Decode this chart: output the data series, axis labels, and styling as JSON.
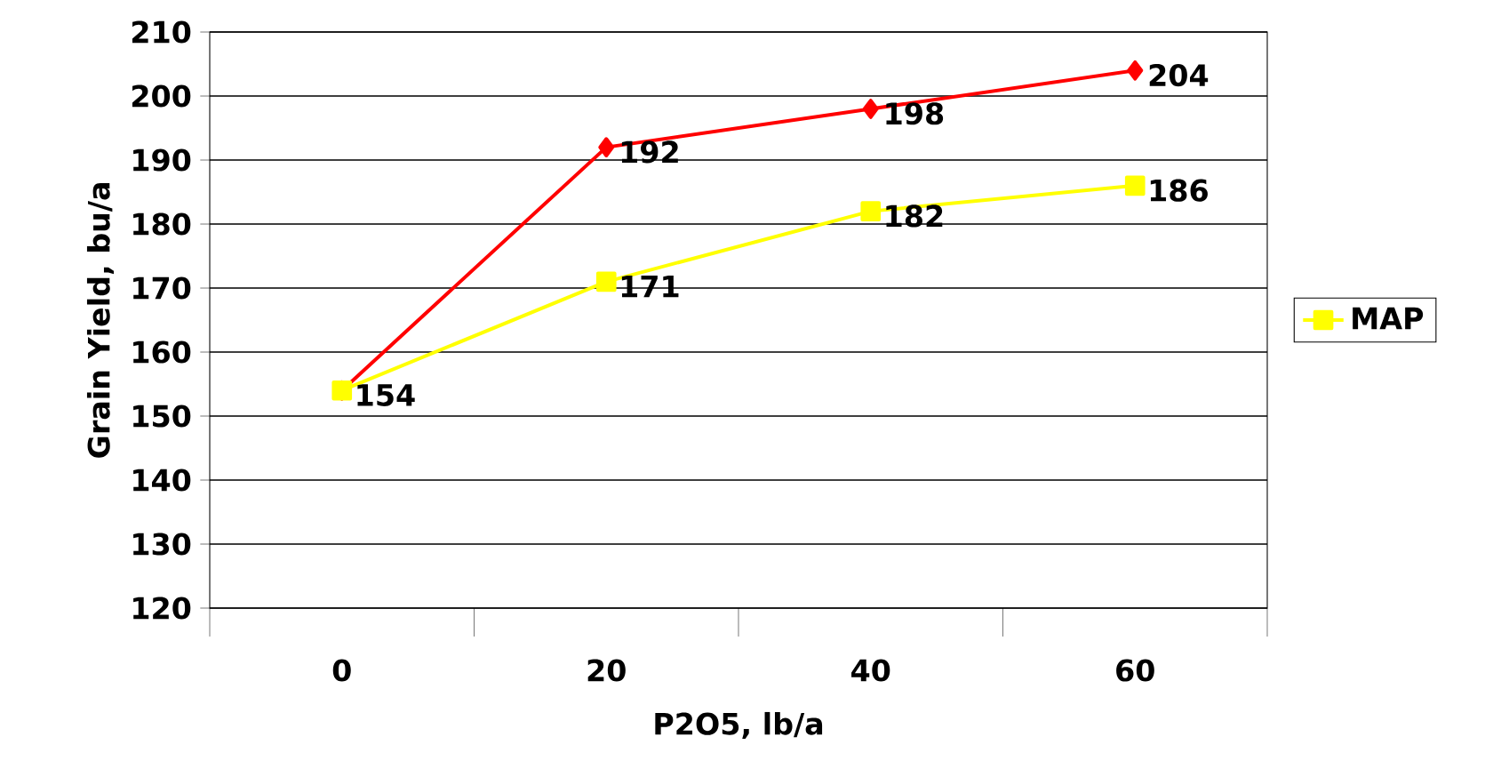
{
  "chart_data": {
    "type": "line",
    "xlabel": "P2O5, lb/a",
    "ylabel": "Grain Yield, bu/a",
    "categories": [
      "0",
      "20",
      "40",
      "60"
    ],
    "series": [
      {
        "color": "#ff0000",
        "marker": "diamond",
        "values": [
          154,
          192,
          198,
          204
        ],
        "value_labels": [
          null,
          "192",
          "198",
          "204"
        ]
      },
      {
        "name": "MAP",
        "color": "#ffff00",
        "marker": "square",
        "values": [
          154,
          171,
          182,
          186
        ],
        "value_labels": [
          "154",
          "171",
          "182",
          "186"
        ]
      }
    ],
    "ylim": [
      120,
      210
    ],
    "yticks": [
      120,
      130,
      140,
      150,
      160,
      170,
      180,
      190,
      200,
      210
    ],
    "grid": "y",
    "legend": "right",
    "line_style": "solid"
  }
}
